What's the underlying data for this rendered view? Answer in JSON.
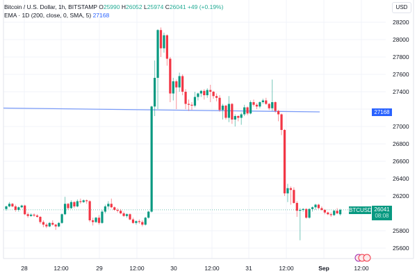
{
  "header": {
    "symbol_title": "Bitcoin / U.S. Dollar, 1h, BITSTAMP",
    "open_label": "O",
    "open": "25990",
    "high_label": "H",
    "high": "26052",
    "low_label": "L",
    "low": "25974",
    "close_label": "C",
    "close": "26041",
    "change": "+49 (+0.19%)",
    "indicator": "EMA · 1D (200, close, 0, SMA, 5)",
    "indicator_value": "27168"
  },
  "currency_button": "USD",
  "price_labels": {
    "ema": "27168",
    "symbol": "BTCUSD",
    "last_price": "26041",
    "countdown": "08:08"
  },
  "colors": {
    "up": "#089981",
    "down": "#f23645",
    "ema": "#2962ff",
    "grid": "#f0f3fa",
    "text": "#131722"
  },
  "chart_data": {
    "type": "candlestick",
    "title": "Bitcoin / U.S. Dollar, 1h, BITSTAMP",
    "xlabel": "",
    "ylabel": "USD",
    "ylim": [
      25480,
      28420
    ],
    "grid": true,
    "y_ticks": [
      28200,
      28000,
      27800,
      27600,
      27400,
      27200,
      27000,
      26800,
      26600,
      26400,
      26200,
      25800,
      25600
    ],
    "x_ticks": [
      {
        "label": "28",
        "x": 35
      },
      {
        "label": "12:00",
        "x": 88
      },
      {
        "label": "29",
        "x": 143
      },
      {
        "label": "12:00",
        "x": 197
      },
      {
        "label": "30",
        "x": 250
      },
      {
        "label": "12:00",
        "x": 305
      },
      {
        "label": "31",
        "x": 358
      },
      {
        "label": "12:00",
        "x": 412
      },
      {
        "label": "Sep",
        "x": 466,
        "bold": true
      },
      {
        "label": "12:00",
        "x": 520
      }
    ],
    "series": [
      {
        "name": "EMA 1D (200)",
        "type": "line",
        "points": [
          [
            5,
            27212
          ],
          [
            460,
            27168
          ]
        ]
      },
      {
        "name": "BTCUSD",
        "type": "candlestick",
        "x_start": 9,
        "x_step": 4.45,
        "ohlc": [
          [
            26050,
            26090,
            26030,
            26080
          ],
          [
            26080,
            26130,
            26070,
            26110
          ],
          [
            26110,
            26120,
            26070,
            26080
          ],
          [
            26080,
            26100,
            26020,
            26040
          ],
          [
            26040,
            26080,
            26020,
            26070
          ],
          [
            26070,
            26100,
            26060,
            26090
          ],
          [
            26090,
            26100,
            25980,
            25990
          ],
          [
            25990,
            26010,
            25950,
            25970
          ],
          [
            25970,
            26000,
            25960,
            25985
          ],
          [
            25985,
            26000,
            25960,
            25975
          ],
          [
            25975,
            25990,
            25950,
            25960
          ],
          [
            25960,
            25970,
            25880,
            25900
          ],
          [
            25900,
            25920,
            25840,
            25870
          ],
          [
            25870,
            25890,
            25830,
            25850
          ],
          [
            25850,
            25900,
            25840,
            25890
          ],
          [
            25890,
            25920,
            25860,
            25870
          ],
          [
            25870,
            25880,
            25810,
            25850
          ],
          [
            25850,
            25900,
            25840,
            25890
          ],
          [
            25890,
            26000,
            25880,
            25990
          ],
          [
            25990,
            26190,
            25980,
            26110
          ],
          [
            26110,
            26120,
            26040,
            26060
          ],
          [
            26060,
            26150,
            26050,
            26130
          ],
          [
            26130,
            26140,
            26060,
            26080
          ],
          [
            26080,
            26160,
            26070,
            26140
          ],
          [
            26140,
            26170,
            26110,
            26130
          ],
          [
            26130,
            26160,
            26120,
            26150
          ],
          [
            26150,
            26160,
            26110,
            26140
          ],
          [
            26140,
            26150,
            25900,
            25920
          ],
          [
            25920,
            25950,
            25860,
            25900
          ],
          [
            25900,
            25960,
            25890,
            25950
          ],
          [
            25950,
            25980,
            25870,
            25890
          ],
          [
            25890,
            26040,
            25880,
            26020
          ],
          [
            26020,
            26100,
            26000,
            26080
          ],
          [
            26080,
            26140,
            26050,
            26110
          ],
          [
            26110,
            26170,
            26060,
            26070
          ],
          [
            26070,
            26080,
            26030,
            26040
          ],
          [
            26040,
            26060,
            26010,
            26030
          ],
          [
            26030,
            26050,
            25990,
            26000
          ],
          [
            26000,
            26020,
            25960,
            25970
          ],
          [
            25970,
            26000,
            25950,
            25990
          ],
          [
            25990,
            26000,
            25920,
            25930
          ],
          [
            25930,
            25950,
            25880,
            25890
          ],
          [
            25890,
            25920,
            25870,
            25910
          ],
          [
            25910,
            25930,
            25880,
            25900
          ],
          [
            25900,
            25920,
            25850,
            25870
          ],
          [
            25870,
            25960,
            25860,
            25950
          ],
          [
            25950,
            26030,
            25940,
            26020
          ],
          [
            26020,
            27240,
            26010,
            27230
          ],
          [
            27230,
            27760,
            27120,
            27560
          ],
          [
            27560,
            28120,
            27200,
            28110
          ],
          [
            28110,
            28140,
            27800,
            27900
          ],
          [
            27900,
            28080,
            27850,
            28050
          ],
          [
            28050,
            28060,
            27700,
            27780
          ],
          [
            27780,
            27800,
            27280,
            27380
          ],
          [
            27380,
            27560,
            27300,
            27520
          ],
          [
            27520,
            27540,
            27200,
            27450
          ],
          [
            27450,
            27620,
            27400,
            27580
          ],
          [
            27580,
            27600,
            27360,
            27400
          ],
          [
            27400,
            27430,
            27200,
            27260
          ],
          [
            27260,
            27310,
            27180,
            27250
          ],
          [
            27250,
            27280,
            27190,
            27240
          ],
          [
            27240,
            27400,
            27220,
            27340
          ],
          [
            27340,
            27390,
            27300,
            27380
          ],
          [
            27380,
            27420,
            27340,
            27410
          ],
          [
            27410,
            27430,
            27310,
            27360
          ],
          [
            27360,
            27440,
            27330,
            27420
          ],
          [
            27420,
            27480,
            27280,
            27400
          ],
          [
            27400,
            27410,
            27320,
            27350
          ],
          [
            27350,
            27380,
            27290,
            27330
          ],
          [
            27330,
            27360,
            27170,
            27190
          ],
          [
            27190,
            27260,
            27080,
            27240
          ],
          [
            27240,
            27250,
            27080,
            27100
          ],
          [
            27100,
            27350,
            27050,
            27260
          ],
          [
            27260,
            27270,
            27030,
            27080
          ],
          [
            27080,
            27140,
            27000,
            27120
          ],
          [
            27120,
            27130,
            27060,
            27100
          ],
          [
            27100,
            27160,
            27020,
            27140
          ],
          [
            27140,
            27250,
            27120,
            27220
          ],
          [
            27220,
            27230,
            27130,
            27150
          ],
          [
            27150,
            27300,
            27140,
            27280
          ],
          [
            27280,
            27310,
            27230,
            27250
          ],
          [
            27250,
            27270,
            27200,
            27230
          ],
          [
            27230,
            27290,
            27210,
            27280
          ],
          [
            27280,
            27320,
            27260,
            27300
          ],
          [
            27300,
            27330,
            27250,
            27260
          ],
          [
            27260,
            27270,
            27190,
            27210
          ],
          [
            27210,
            27540,
            27180,
            27280
          ],
          [
            27280,
            27290,
            27160,
            27180
          ],
          [
            27180,
            27190,
            27060,
            27140
          ],
          [
            27140,
            27150,
            26900,
            26960
          ],
          [
            26960,
            26970,
            26200,
            26230
          ],
          [
            26230,
            26340,
            26130,
            26290
          ],
          [
            26290,
            26310,
            26100,
            26270
          ],
          [
            26270,
            26300,
            26110,
            26120
          ],
          [
            26120,
            26140,
            25960,
            26030
          ],
          [
            26030,
            26060,
            25690,
            26040
          ],
          [
            26040,
            26060,
            26020,
            26050
          ],
          [
            26050,
            26060,
            25940,
            25950
          ],
          [
            25950,
            26060,
            25940,
            26050
          ],
          [
            26050,
            26080,
            26020,
            26070
          ],
          [
            26070,
            26110,
            26040,
            26100
          ],
          [
            26100,
            26110,
            26050,
            26060
          ],
          [
            26060,
            26080,
            26030,
            26040
          ],
          [
            26040,
            26050,
            25990,
            26010
          ],
          [
            26010,
            26020,
            25980,
            25990
          ],
          [
            25990,
            26010,
            25960,
            25980
          ],
          [
            25980,
            26040,
            25970,
            26030
          ],
          [
            26030,
            26060,
            25990,
            26000
          ],
          [
            25990,
            26052,
            25974,
            26041
          ]
        ]
      }
    ],
    "annotations": [
      "BTCUSD last price 26041",
      "EMA 27168",
      "event markers near Sep 1 12:00"
    ]
  }
}
